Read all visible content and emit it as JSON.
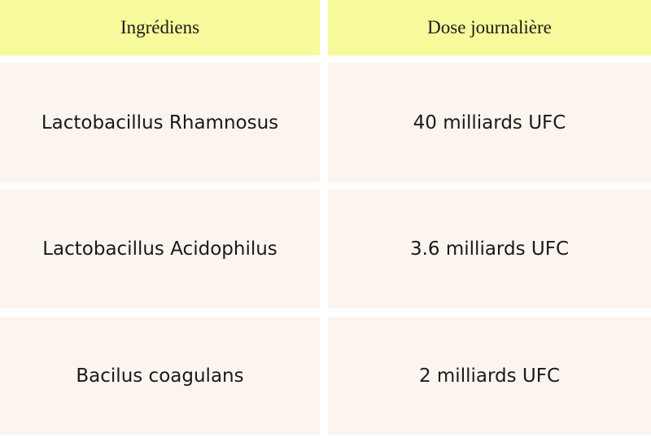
{
  "table": {
    "headers": [
      "Ingrédiens",
      "Dose journalière"
    ],
    "rows": [
      [
        "Lactobacillus Rhamnosus",
        "40 milliards UFC"
      ],
      [
        "Lactobacillus Acidophilus",
        "3.6 milliards UFC"
      ],
      [
        "Bacilus coagulans",
        "2 milliards UFC"
      ]
    ]
  },
  "colors": {
    "header_bg": "#f7fa9b",
    "row_bg": "#fcf5ef"
  }
}
